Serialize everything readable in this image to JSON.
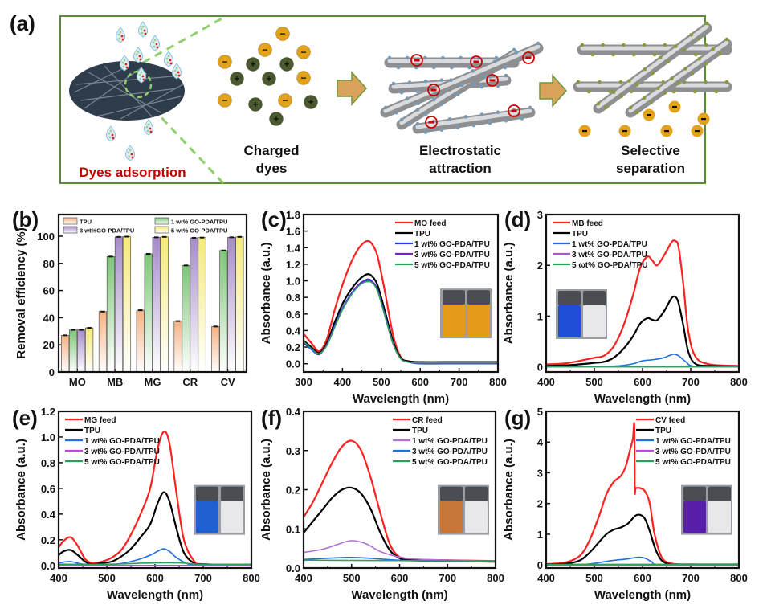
{
  "figure": {
    "panel_labels": [
      "(a)",
      "(b)",
      "(c)",
      "(d)",
      "(e)",
      "(f)",
      "(g)"
    ]
  },
  "schematic": {
    "steps": [
      {
        "label": "Dyes adsorption",
        "color": "#c00000"
      },
      {
        "label_lines": [
          "Charged",
          "dyes"
        ]
      },
      {
        "label_lines": [
          "Electrostatic",
          "attraction"
        ]
      },
      {
        "label_lines": [
          "Selective",
          "separation"
        ]
      }
    ],
    "charge_symbols": {
      "negative": "−",
      "positive": "+"
    },
    "colors": {
      "frame": "#5a8a3c",
      "dashed": "#8fcf6e",
      "anion": "#e3a21a",
      "cation": "#4b5a2e",
      "arrow": "#d9a35b",
      "highlight": "#cc0000"
    }
  },
  "chart_data": [
    {
      "panel": "(b)",
      "type": "bar",
      "title": "",
      "xlabel": "",
      "ylabel": "Removal efficiency (%)",
      "ylim": [
        0,
        115
      ],
      "yticks": [
        0,
        20,
        40,
        60,
        80,
        100
      ],
      "categories": [
        "MO",
        "MB",
        "MG",
        "CR",
        "CV"
      ],
      "legend": "top",
      "series": [
        {
          "name": "TPU",
          "color": "#f4b183",
          "values": [
            27,
            44.5,
            45.5,
            37.5,
            33.5
          ]
        },
        {
          "name": "1 wt% GO-PDA/TPU",
          "color": "#7cc576",
          "values": [
            31,
            85,
            87,
            78.5,
            89.5
          ]
        },
        {
          "name": "3 wt%GO-PDA/TPU",
          "color": "#a68bc9",
          "values": [
            31,
            99.5,
            99.2,
            98.8,
            99.2
          ]
        },
        {
          "name": "5 wt% GO-PDA/TPU",
          "color": "#f5ea7a",
          "values": [
            32.5,
            99.7,
            99.5,
            99,
            99.5
          ]
        }
      ],
      "legend_order": [
        0,
        1,
        2,
        3
      ]
    },
    {
      "panel": "(c)",
      "type": "line",
      "xlabel": "Wavelength (nm)",
      "ylabel": "Absorbance (a.u.)",
      "xlim": [
        300,
        800
      ],
      "ylim": [
        -0.1,
        1.8
      ],
      "xticks": [
        300,
        400,
        500,
        600,
        700,
        800
      ],
      "yticks": [
        0.0,
        0.2,
        0.4,
        0.6,
        0.8,
        1.0,
        1.2,
        1.4,
        1.6,
        1.8
      ],
      "ytick_decimals": 1,
      "legend": "top-right",
      "inset": {
        "position": "right",
        "vials": [
          "#e59a1a",
          "#e59a1a"
        ]
      },
      "series": [
        {
          "name": "MO feed",
          "color": "#ff2020",
          "x": [
            300,
            320,
            340,
            360,
            380,
            400,
            420,
            440,
            455,
            465,
            475,
            490,
            510,
            530,
            550,
            570,
            600,
            700,
            800
          ],
          "y": [
            0.36,
            0.25,
            0.15,
            0.3,
            0.65,
            0.95,
            1.2,
            1.38,
            1.46,
            1.48,
            1.45,
            1.3,
            0.85,
            0.35,
            0.08,
            0.03,
            0.02,
            0.01,
            0.01
          ]
        },
        {
          "name": "TPU",
          "color": "#000000",
          "x": [
            300,
            320,
            340,
            360,
            380,
            400,
            420,
            440,
            455,
            465,
            475,
            490,
            510,
            530,
            550,
            570,
            600,
            700,
            800
          ],
          "y": [
            0.28,
            0.2,
            0.13,
            0.25,
            0.5,
            0.72,
            0.88,
            1.0,
            1.06,
            1.08,
            1.06,
            0.95,
            0.62,
            0.27,
            0.07,
            0.03,
            0.02,
            0.02,
            0.02
          ]
        },
        {
          "name": "1 wt% GO-PDA/TPU",
          "color": "#1f3fff",
          "x": [
            300,
            320,
            340,
            360,
            380,
            400,
            420,
            440,
            455,
            465,
            475,
            490,
            510,
            530,
            550,
            570,
            600,
            700,
            800
          ],
          "y": [
            0.25,
            0.17,
            0.11,
            0.23,
            0.46,
            0.67,
            0.83,
            0.95,
            1.0,
            1.02,
            1.0,
            0.9,
            0.58,
            0.25,
            0.06,
            0.02,
            0.01,
            0.01,
            0.01
          ]
        },
        {
          "name": "3 wt% GO-PDA/TPU",
          "color": "#7a1fd9",
          "x": [
            300,
            320,
            340,
            360,
            380,
            400,
            420,
            440,
            455,
            465,
            475,
            490,
            510,
            530,
            550,
            570,
            600,
            700,
            800
          ],
          "y": [
            0.26,
            0.18,
            0.12,
            0.23,
            0.45,
            0.66,
            0.82,
            0.94,
            0.99,
            1.0,
            0.99,
            0.89,
            0.57,
            0.24,
            0.06,
            0.02,
            0.0,
            0.0,
            0.0
          ]
        },
        {
          "name": "5 wt% GO-PDA/TPU",
          "color": "#2ca05a",
          "x": [
            300,
            320,
            340,
            360,
            380,
            400,
            420,
            440,
            455,
            465,
            475,
            490,
            510,
            530,
            550,
            570,
            600,
            700,
            800
          ],
          "y": [
            0.27,
            0.18,
            0.12,
            0.22,
            0.44,
            0.65,
            0.81,
            0.93,
            0.98,
            0.99,
            0.98,
            0.88,
            0.56,
            0.24,
            0.06,
            0.02,
            0.01,
            0.01,
            0.01
          ]
        }
      ]
    },
    {
      "panel": "(d)",
      "type": "line",
      "xlabel": "Wavelength (nm)",
      "ylabel": "Absorbance (a.u.)",
      "xlim": [
        400,
        800
      ],
      "ylim": [
        -0.1,
        3
      ],
      "xticks": [
        400,
        500,
        600,
        700,
        800
      ],
      "yticks": [
        0,
        1,
        2,
        3
      ],
      "ytick_decimals": 0,
      "legend": "top-left",
      "inset": {
        "position": "left",
        "vials": [
          "#1f4fd6",
          "#e8e8ea"
        ]
      },
      "series": [
        {
          "name": "MB feed",
          "color": "#ff2020",
          "x": [
            400,
            440,
            480,
            500,
            520,
            540,
            560,
            580,
            595,
            610,
            620,
            630,
            645,
            660,
            668,
            675,
            685,
            695,
            710,
            740,
            800
          ],
          "y": [
            0.05,
            0.07,
            0.14,
            0.18,
            0.22,
            0.4,
            0.8,
            1.4,
            1.95,
            2.17,
            2.1,
            2.0,
            2.2,
            2.45,
            2.48,
            2.35,
            1.6,
            0.7,
            0.2,
            0.05,
            0.02
          ]
        },
        {
          "name": "TPU",
          "color": "#000000",
          "x": [
            400,
            440,
            480,
            500,
            520,
            540,
            560,
            580,
            595,
            610,
            620,
            630,
            645,
            660,
            668,
            675,
            685,
            695,
            710,
            740,
            800
          ],
          "y": [
            0.02,
            0.03,
            0.06,
            0.08,
            0.1,
            0.18,
            0.35,
            0.6,
            0.85,
            0.96,
            0.93,
            0.92,
            1.1,
            1.35,
            1.38,
            1.25,
            0.8,
            0.3,
            0.06,
            0.02,
            0.01
          ]
        },
        {
          "name": "1 wt% GO-PDA/TPU",
          "color": "#1f6fe0",
          "x": [
            400,
            500,
            550,
            580,
            600,
            620,
            640,
            655,
            665,
            675,
            690,
            710,
            800
          ],
          "y": [
            0.01,
            0.01,
            0.02,
            0.06,
            0.12,
            0.14,
            0.17,
            0.22,
            0.25,
            0.22,
            0.1,
            0.01,
            0.0
          ]
        },
        {
          "name": "3 wt% GO-PDA/TPU",
          "color": "#b44fd6",
          "x": [
            400,
            800
          ],
          "y": [
            0.0,
            0.0
          ]
        },
        {
          "name": "5 ωt% GO-PDA/TPU",
          "color": "#2ca05a",
          "x": [
            400,
            800
          ],
          "y": [
            0.01,
            0.01
          ]
        }
      ]
    },
    {
      "panel": "(e)",
      "type": "line",
      "xlabel": "Wavelength (nm)",
      "ylabel": "Absorbance (a.u.)",
      "xlim": [
        400,
        800
      ],
      "ylim": [
        -0.02,
        1.2
      ],
      "xticks": [
        400,
        500,
        600,
        700,
        800
      ],
      "yticks": [
        0.0,
        0.2,
        0.4,
        0.6,
        0.8,
        1.0,
        1.2
      ],
      "ytick_decimals": 1,
      "legend": "top-left",
      "inset": {
        "position": "right",
        "vials": [
          "#1f5fd0",
          "#e8e8ea"
        ]
      },
      "series": [
        {
          "name": "MG feed",
          "color": "#ff2020",
          "x": [
            400,
            410,
            425,
            440,
            455,
            470,
            490,
            510,
            530,
            550,
            570,
            590,
            605,
            618,
            630,
            645,
            660,
            680,
            700,
            800
          ],
          "y": [
            0.14,
            0.19,
            0.22,
            0.15,
            0.05,
            0.02,
            0.03,
            0.06,
            0.12,
            0.24,
            0.4,
            0.6,
            0.9,
            1.04,
            0.95,
            0.55,
            0.2,
            0.04,
            0.01,
            0.0
          ]
        },
        {
          "name": "TPU",
          "color": "#000000",
          "x": [
            400,
            410,
            425,
            440,
            455,
            470,
            490,
            510,
            530,
            550,
            570,
            590,
            605,
            618,
            630,
            645,
            660,
            680,
            700,
            800
          ],
          "y": [
            0.08,
            0.11,
            0.12,
            0.08,
            0.03,
            0.01,
            0.02,
            0.03,
            0.07,
            0.13,
            0.22,
            0.32,
            0.48,
            0.57,
            0.5,
            0.28,
            0.1,
            0.02,
            0.01,
            0.0
          ]
        },
        {
          "name": "1 wt% GO-PDA/TPU",
          "color": "#1f6fe0",
          "x": [
            400,
            425,
            450,
            480,
            520,
            560,
            590,
            605,
            618,
            630,
            645,
            670,
            700,
            800
          ],
          "y": [
            0.02,
            0.03,
            0.01,
            0.01,
            0.01,
            0.04,
            0.08,
            0.11,
            0.13,
            0.11,
            0.06,
            0.01,
            0.0,
            0.0
          ]
        },
        {
          "name": "3 wt% GO-PDA/TPU",
          "color": "#b44fd6",
          "x": [
            400,
            800
          ],
          "y": [
            0.0,
            0.0
          ]
        },
        {
          "name": "5 wt% GO-PDA/TPU",
          "color": "#2ca05a",
          "x": [
            400,
            500,
            600,
            650,
            700,
            800
          ],
          "y": [
            0.01,
            0.01,
            0.02,
            0.02,
            0.01,
            0.01
          ]
        }
      ]
    },
    {
      "panel": "(f)",
      "type": "line",
      "xlabel": "Wavelength (nm)",
      "ylabel": "Absorbance (a.u.)",
      "xlim": [
        400,
        800
      ],
      "ylim": [
        0,
        0.4
      ],
      "xticks": [
        400,
        500,
        600,
        700,
        800
      ],
      "yticks": [
        0.0,
        0.1,
        0.2,
        0.3,
        0.4
      ],
      "ytick_decimals": 1,
      "legend": "top-right",
      "inset": {
        "position": "right",
        "vials": [
          "#c8763a",
          "#e8e8ea"
        ]
      },
      "series": [
        {
          "name": "CR feed",
          "color": "#ff2020",
          "x": [
            400,
            420,
            440,
            460,
            480,
            500,
            520,
            540,
            560,
            580,
            600,
            620,
            700,
            800
          ],
          "y": [
            0.13,
            0.17,
            0.22,
            0.27,
            0.31,
            0.325,
            0.3,
            0.23,
            0.14,
            0.06,
            0.028,
            0.022,
            0.02,
            0.018
          ]
        },
        {
          "name": "TPU",
          "color": "#000000",
          "x": [
            400,
            420,
            440,
            460,
            480,
            500,
            520,
            540,
            560,
            580,
            600,
            620,
            700,
            800
          ],
          "y": [
            0.09,
            0.12,
            0.15,
            0.18,
            0.2,
            0.205,
            0.19,
            0.15,
            0.09,
            0.045,
            0.025,
            0.02,
            0.018,
            0.016
          ]
        },
        {
          "name": "1 wt% GO-PDA/TPU",
          "color": "#b070d8",
          "x": [
            400,
            440,
            470,
            500,
            530,
            560,
            600,
            650,
            800
          ],
          "y": [
            0.04,
            0.048,
            0.06,
            0.07,
            0.062,
            0.042,
            0.028,
            0.022,
            0.018
          ]
        },
        {
          "name": "3 wt% GO-PDA/TPU",
          "color": "#1f6fe0",
          "x": [
            400,
            450,
            500,
            550,
            600,
            700,
            800
          ],
          "y": [
            0.022,
            0.025,
            0.027,
            0.024,
            0.02,
            0.018,
            0.017
          ]
        },
        {
          "name": "5 wt% GO-PDA/TPU",
          "color": "#2ca05a",
          "x": [
            400,
            600,
            800
          ],
          "y": [
            0.02,
            0.019,
            0.018
          ]
        }
      ]
    },
    {
      "panel": "(g)",
      "type": "line",
      "xlabel": "Wavelength (nm)",
      "ylabel": "Absorbance (a.u.)",
      "xlim": [
        400,
        800
      ],
      "ylim": [
        -0.1,
        5
      ],
      "xticks": [
        400,
        500,
        600,
        700,
        800
      ],
      "yticks": [
        0,
        1,
        2,
        3,
        4,
        5
      ],
      "ytick_decimals": 0,
      "legend": "top-right",
      "inset": {
        "position": "right",
        "vials": [
          "#5a1fa8",
          "#e8e8ea"
        ]
      },
      "series": [
        {
          "name": "CV feed",
          "color": "#ff2020",
          "x": [
            400,
            440,
            470,
            490,
            510,
            525,
            540,
            555,
            565,
            575,
            580,
            583,
            584,
            586,
            595,
            605,
            615,
            625,
            640,
            660,
            700,
            800
          ],
          "y": [
            0.03,
            0.08,
            0.3,
            0.8,
            1.6,
            2.3,
            2.7,
            2.9,
            3.2,
            3.8,
            4.1,
            4.55,
            2.45,
            2.5,
            2.5,
            2.4,
            2.0,
            1.0,
            0.25,
            0.05,
            0.02,
            0.02
          ]
        },
        {
          "name": "TPU",
          "color": "#000000",
          "x": [
            400,
            440,
            470,
            490,
            510,
            525,
            540,
            555,
            570,
            585,
            595,
            605,
            615,
            630,
            650,
            700,
            800
          ],
          "y": [
            0.02,
            0.04,
            0.15,
            0.4,
            0.75,
            1.0,
            1.15,
            1.22,
            1.35,
            1.6,
            1.63,
            1.5,
            1.1,
            0.4,
            0.05,
            0.01,
            0.01
          ]
        },
        {
          "name": "1 wt% GO-PDA/TPU",
          "color": "#1f6fe0",
          "x": [
            400,
            480,
            510,
            540,
            570,
            590,
            605,
            620,
            640,
            800
          ],
          "y": [
            0.0,
            0.02,
            0.08,
            0.15,
            0.2,
            0.25,
            0.22,
            0.1,
            0.01,
            0.0
          ]
        },
        {
          "name": "3 wt% GO-PDA/TPU",
          "color": "#b44fd6",
          "x": [
            400,
            800
          ],
          "y": [
            0.0,
            0.0
          ]
        },
        {
          "name": "5 wt% GO-PDA/TPU",
          "color": "#2ca05a",
          "x": [
            400,
            800
          ],
          "y": [
            0.02,
            0.02
          ]
        }
      ]
    }
  ]
}
